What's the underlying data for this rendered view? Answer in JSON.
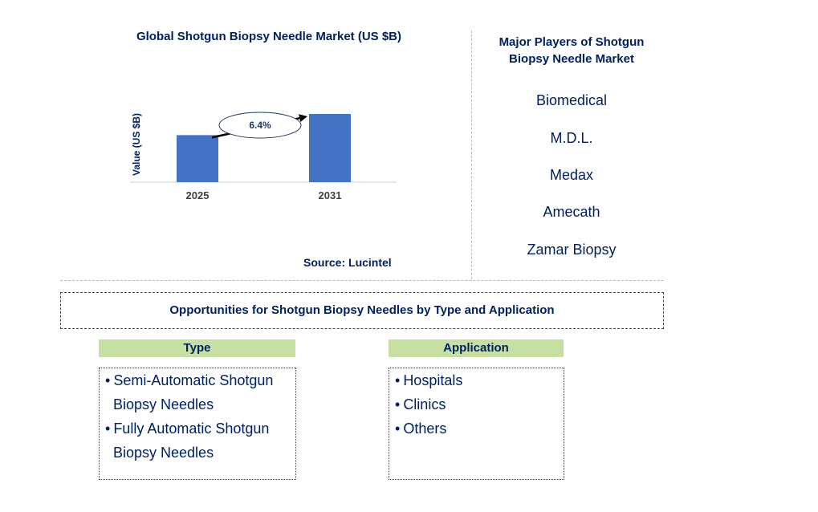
{
  "chart_data": {
    "type": "bar",
    "title": "Global Shotgun Biopsy Needle Market (US $B)",
    "ylabel": "Value (US $B)",
    "xlabel": "",
    "categories": [
      "2025",
      "2031"
    ],
    "values": [
      1.0,
      1.45
    ],
    "ylim": [
      0,
      1.5
    ],
    "annotation": "6.4%",
    "grid": false,
    "bar_color": "#4472c4"
  },
  "source": "Source: Lucintel",
  "players": {
    "title": "Major Players of Shotgun Biopsy Needle Market",
    "items": [
      "Biomedical",
      "M.D.L.",
      "Medax",
      "Amecath",
      "Zamar Biopsy"
    ]
  },
  "opportunities": {
    "title": "Opportunities for Shotgun Biopsy Needles by Type and Application",
    "type": {
      "header": "Type",
      "items": [
        "Semi-Automatic Shotgun Biopsy Needles",
        "Fully Automatic Shotgun Biopsy Needles"
      ]
    },
    "application": {
      "header": "Application",
      "items": [
        "Hospitals",
        "Clinics",
        "Others"
      ]
    }
  },
  "colors": {
    "navy": "#002060",
    "header_green": "#c6e0a4",
    "divider_yellow": "#f2c200"
  }
}
